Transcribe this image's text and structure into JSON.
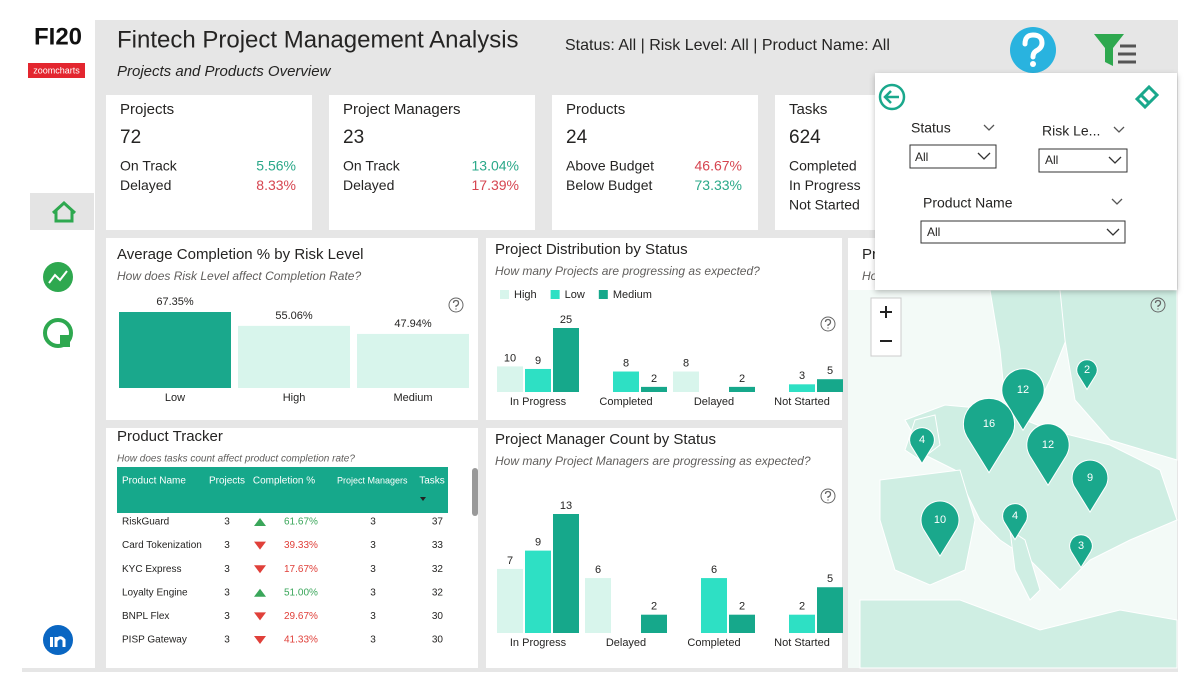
{
  "header": {
    "logo": "FI20",
    "logo_brand": "zoomcharts",
    "title": "Fintech Project Management Analysis",
    "subtitle": "Projects and Products Overview",
    "filters": "Status: All | Risk Level: All | Product Name: All"
  },
  "cards": [
    {
      "title": "Projects",
      "value": 72,
      "rows": [
        {
          "label": "On Track",
          "value": "5.56%",
          "color": "#2aa889"
        },
        {
          "label": "Delayed",
          "value": "8.33%",
          "color": "#d64550"
        }
      ]
    },
    {
      "title": "Project Managers",
      "value": 23,
      "rows": [
        {
          "label": "On Track",
          "value": "13.04%",
          "color": "#2aa889"
        },
        {
          "label": "Delayed",
          "value": "17.39%",
          "color": "#d64550"
        }
      ]
    },
    {
      "title": "Products",
      "value": 24,
      "rows": [
        {
          "label": "Above Budget",
          "value": "46.67%",
          "color": "#d64550"
        },
        {
          "label": "Below Budget",
          "value": "73.33%",
          "color": "#2aa889"
        }
      ]
    },
    {
      "title": "Tasks",
      "value": 624,
      "rows": [
        {
          "label": "Completed"
        },
        {
          "label": "In Progress"
        },
        {
          "label": "Not Started"
        }
      ]
    }
  ],
  "chart_data": [
    {
      "type": "bar",
      "title": "Average Completion % by Risk Level",
      "subtitle": "How does Risk Level affect Completion Rate?",
      "categories": [
        "Low",
        "High",
        "Medium"
      ],
      "values": [
        67.35,
        55.06,
        47.94
      ],
      "value_labels": [
        "67.35%",
        "55.06%",
        "47.94%"
      ],
      "colors": [
        "#1aa88c",
        "#d8f5ec",
        "#d8f5ec"
      ]
    },
    {
      "type": "bar",
      "title": "Project Distribution by Status",
      "subtitle": "How many Projects are progressing as expected?",
      "legend": true,
      "categories": [
        "In Progress",
        "Completed",
        "Delayed",
        "Not Started"
      ],
      "series": [
        {
          "name": "High",
          "color": "#d8f5ec",
          "values": [
            10,
            null,
            8,
            null
          ]
        },
        {
          "name": "Low",
          "color": "#2ee0c4",
          "values": [
            9,
            8,
            null,
            3
          ]
        },
        {
          "name": "Medium",
          "color": "#16a88b",
          "values": [
            25,
            2,
            2,
            5
          ]
        }
      ]
    },
    {
      "type": "bar",
      "title": "Project Manager Count by Status",
      "subtitle": "How many Project Managers are progressing as expected?",
      "legend": false,
      "categories": [
        "In Progress",
        "Delayed",
        "Completed",
        "Not Started"
      ],
      "series": [
        {
          "color": "#d8f5ec",
          "values": [
            7,
            6,
            null,
            null
          ]
        },
        {
          "color": "#2ee0c4",
          "values": [
            9,
            null,
            6,
            2
          ]
        },
        {
          "color": "#16a88b",
          "values": [
            13,
            2,
            2,
            5
          ]
        }
      ]
    },
    {
      "type": "map",
      "title": "Pr",
      "subtitle": "How does project count vary across countries?",
      "color": "#1aa88c",
      "values": [
        2,
        12,
        16,
        12,
        4,
        9,
        4,
        10,
        3
      ]
    }
  ],
  "table": {
    "title": "Product Tracker",
    "subtitle": "How does tasks count affect product completion rate?",
    "columns": [
      "Product Name",
      "Projects",
      "Completion %",
      "Project Managers",
      "Tasks"
    ],
    "rows": [
      {
        "name": "RiskGuard",
        "projects": 3,
        "trend": "up",
        "completion": "61.67%",
        "managers": 3,
        "tasks": 37
      },
      {
        "name": "Card Tokenization",
        "projects": 3,
        "trend": "down",
        "completion": "39.33%",
        "managers": 3,
        "tasks": 33
      },
      {
        "name": "KYC Express",
        "projects": 3,
        "trend": "down",
        "completion": "17.67%",
        "managers": 3,
        "tasks": 32
      },
      {
        "name": "Loyalty Engine",
        "projects": 3,
        "trend": "up",
        "completion": "51.00%",
        "managers": 3,
        "tasks": 32
      },
      {
        "name": "BNPL Flex",
        "projects": 3,
        "trend": "down",
        "completion": "29.67%",
        "managers": 3,
        "tasks": 30
      },
      {
        "name": "PISP Gateway",
        "projects": 3,
        "trend": "down",
        "completion": "41.33%",
        "managers": 3,
        "tasks": 30
      }
    ]
  },
  "filter_panel": {
    "fields": [
      {
        "label": "Status",
        "selected": "All"
      },
      {
        "label": "Risk Le...",
        "selected": "All"
      },
      {
        "label": "Product Name",
        "selected": "All"
      }
    ]
  }
}
